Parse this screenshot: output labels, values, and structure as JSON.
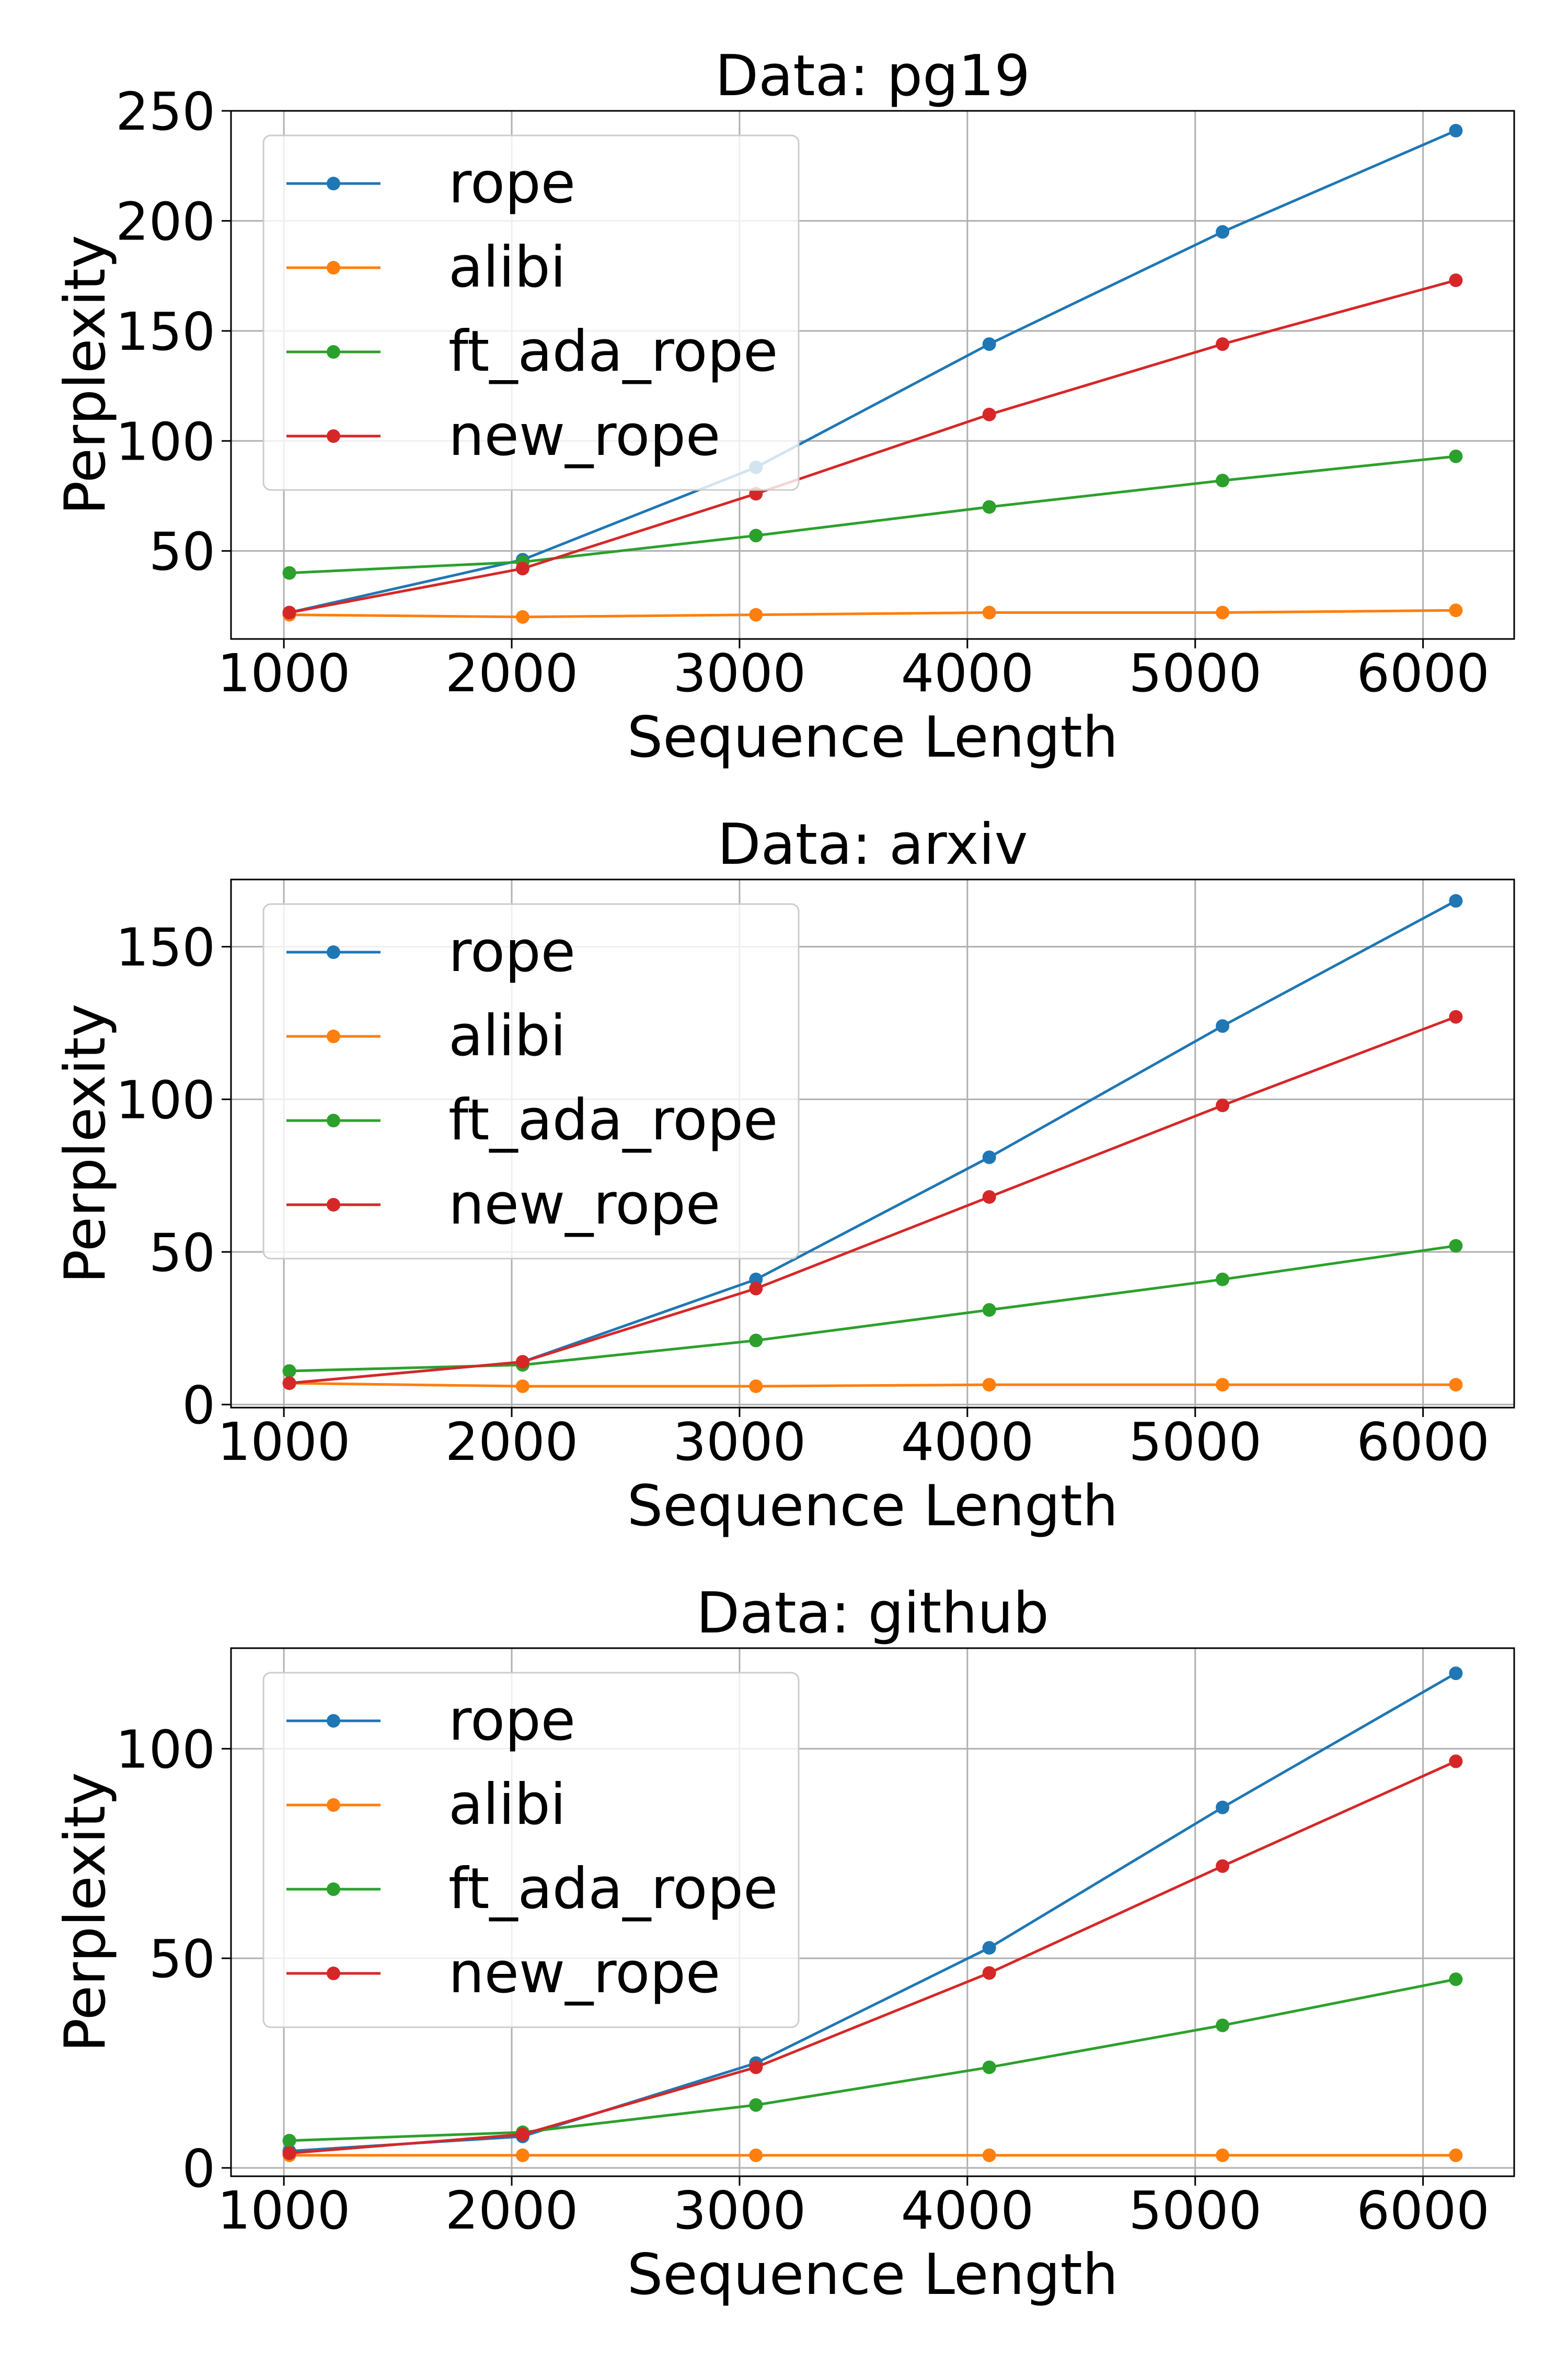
{
  "chart_data": [
    {
      "type": "line",
      "title": "Data: pg19",
      "xlabel": "Sequence Length",
      "ylabel": "Perplexity",
      "x": [
        1024,
        2048,
        3072,
        4096,
        5120,
        6144
      ],
      "xlim": [
        768,
        6400
      ],
      "ylim": [
        10,
        250
      ],
      "xticks": [
        1000,
        2000,
        3000,
        4000,
        5000,
        6000
      ],
      "yticks": [
        50,
        100,
        150,
        200,
        250
      ],
      "grid": true,
      "legend": "upper left",
      "series": [
        {
          "name": "rope",
          "color": "#1f77b4",
          "values": [
            22,
            46,
            88,
            144,
            195,
            241
          ]
        },
        {
          "name": "alibi",
          "color": "#ff7f0e",
          "values": [
            21,
            20,
            21,
            22,
            22,
            23
          ]
        },
        {
          "name": "ft_ada_rope",
          "color": "#2ca02c",
          "values": [
            40,
            45,
            57,
            70,
            82,
            93
          ]
        },
        {
          "name": "new_rope",
          "color": "#d62728",
          "values": [
            22,
            42,
            76,
            112,
            144,
            173
          ]
        }
      ]
    },
    {
      "type": "line",
      "title": "Data: arxiv",
      "xlabel": "Sequence Length",
      "ylabel": "Perplexity",
      "x": [
        1024,
        2048,
        3072,
        4096,
        5120,
        6144
      ],
      "xlim": [
        768,
        6400
      ],
      "ylim": [
        -1,
        172
      ],
      "xticks": [
        1000,
        2000,
        3000,
        4000,
        5000,
        6000
      ],
      "yticks": [
        0,
        50,
        100,
        150
      ],
      "grid": true,
      "legend": "upper left",
      "series": [
        {
          "name": "rope",
          "color": "#1f77b4",
          "values": [
            7,
            14,
            41,
            81,
            124,
            165
          ]
        },
        {
          "name": "alibi",
          "color": "#ff7f0e",
          "values": [
            7,
            6,
            6,
            6.5,
            6.5,
            6.5
          ]
        },
        {
          "name": "ft_ada_rope",
          "color": "#2ca02c",
          "values": [
            11,
            13,
            21,
            31,
            41,
            52
          ]
        },
        {
          "name": "new_rope",
          "color": "#d62728",
          "values": [
            7,
            14,
            38,
            68,
            98,
            127
          ]
        }
      ]
    },
    {
      "type": "line",
      "title": "Data: github",
      "xlabel": "Sequence Length",
      "ylabel": "Perplexity",
      "x": [
        1024,
        2048,
        3072,
        4096,
        5120,
        6144
      ],
      "xlim": [
        768,
        6400
      ],
      "ylim": [
        -2,
        124
      ],
      "xticks": [
        1000,
        2000,
        3000,
        4000,
        5000,
        6000
      ],
      "yticks": [
        0,
        50,
        100
      ],
      "grid": true,
      "legend": "upper left",
      "series": [
        {
          "name": "rope",
          "color": "#1f77b4",
          "values": [
            4,
            7.5,
            25,
            52.5,
            86,
            118
          ]
        },
        {
          "name": "alibi",
          "color": "#ff7f0e",
          "values": [
            3,
            3,
            3,
            3,
            3,
            3
          ]
        },
        {
          "name": "ft_ada_rope",
          "color": "#2ca02c",
          "values": [
            6.5,
            8.5,
            15,
            24,
            34,
            45
          ]
        },
        {
          "name": "new_rope",
          "color": "#d62728",
          "values": [
            3.5,
            8,
            24,
            46.5,
            72,
            97
          ]
        }
      ]
    }
  ]
}
